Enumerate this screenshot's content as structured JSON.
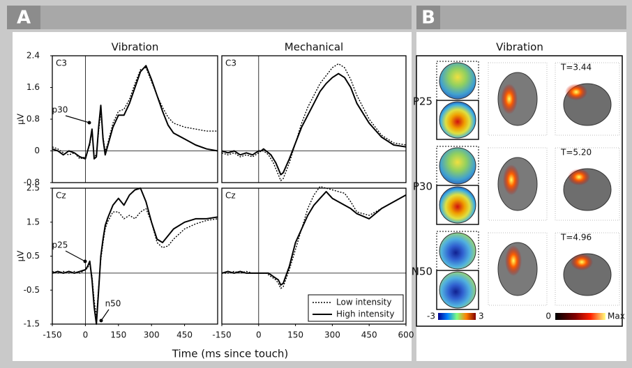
{
  "panel_a": {
    "label": "A",
    "xlabel": "Time (ms since touch)"
  },
  "chart_data": [
    {
      "type": "line",
      "title": "Vibration",
      "channel": "C3",
      "ylabel": "µV",
      "xlim": [
        -150,
        600
      ],
      "ylim": [
        -0.8,
        2.4
      ],
      "yticks": [
        -0.8,
        0,
        0.8,
        1.6,
        2.4
      ],
      "annotations": [
        "p30"
      ],
      "x": [
        -150,
        -125,
        -100,
        -75,
        -50,
        -25,
        0,
        10,
        20,
        30,
        40,
        50,
        60,
        70,
        80,
        90,
        100,
        125,
        150,
        175,
        200,
        225,
        250,
        275,
        300,
        325,
        350,
        375,
        400,
        450,
        500,
        550,
        600
      ],
      "series": [
        {
          "name": "Low intensity",
          "color": "#000000",
          "style": "dotted",
          "values": [
            0.1,
            0.05,
            -0.05,
            -0.1,
            -0.05,
            -0.2,
            -0.15,
            0.0,
            0.15,
            0.5,
            -0.15,
            -0.1,
            0.5,
            1.0,
            0.35,
            0.0,
            0.15,
            0.7,
            1.0,
            1.05,
            1.3,
            1.7,
            2.05,
            2.1,
            1.75,
            1.4,
            1.1,
            0.85,
            0.7,
            0.6,
            0.55,
            0.5,
            0.5
          ]
        },
        {
          "name": "High intensity",
          "color": "#000000",
          "style": "solid",
          "values": [
            0.05,
            0.0,
            -0.1,
            0.0,
            -0.05,
            -0.15,
            -0.2,
            0.0,
            0.2,
            0.55,
            -0.2,
            -0.15,
            0.6,
            1.15,
            0.3,
            -0.1,
            0.1,
            0.6,
            0.9,
            0.9,
            1.2,
            1.6,
            2.0,
            2.15,
            1.8,
            1.4,
            1.0,
            0.65,
            0.45,
            0.3,
            0.15,
            0.05,
            0.0
          ]
        }
      ]
    },
    {
      "type": "line",
      "title": "Mechanical",
      "channel": "C3",
      "xlim": [
        -150,
        600
      ],
      "ylim": [
        -0.8,
        2.4
      ],
      "x": [
        -150,
        -125,
        -100,
        -75,
        -50,
        -25,
        0,
        10,
        20,
        30,
        40,
        50,
        60,
        70,
        80,
        90,
        100,
        125,
        150,
        175,
        200,
        225,
        250,
        275,
        300,
        325,
        350,
        375,
        400,
        450,
        500,
        550,
        600
      ],
      "series": [
        {
          "name": "Low intensity",
          "color": "#000000",
          "style": "dotted",
          "values": [
            -0.05,
            -0.1,
            -0.05,
            -0.15,
            -0.1,
            -0.15,
            -0.05,
            0.0,
            0.0,
            -0.05,
            -0.1,
            -0.2,
            -0.3,
            -0.45,
            -0.6,
            -0.75,
            -0.7,
            -0.3,
            0.2,
            0.7,
            1.1,
            1.4,
            1.7,
            1.9,
            2.1,
            2.2,
            2.1,
            1.8,
            1.4,
            0.8,
            0.4,
            0.2,
            0.15
          ]
        },
        {
          "name": "High intensity",
          "color": "#000000",
          "style": "solid",
          "values": [
            0.0,
            -0.05,
            0.0,
            -0.1,
            -0.05,
            -0.1,
            0.0,
            0.0,
            0.05,
            0.0,
            -0.05,
            -0.1,
            -0.2,
            -0.3,
            -0.45,
            -0.6,
            -0.55,
            -0.2,
            0.2,
            0.6,
            0.9,
            1.2,
            1.5,
            1.7,
            1.85,
            1.95,
            1.85,
            1.6,
            1.2,
            0.7,
            0.35,
            0.15,
            0.1
          ]
        }
      ]
    },
    {
      "type": "line",
      "channel": "Cz",
      "ylabel": "µV",
      "xlim": [
        -150,
        600
      ],
      "ylim": [
        -1.5,
        2.5
      ],
      "yticks": [
        -1.5,
        -0.5,
        0.5,
        1.5,
        2.5
      ],
      "xticks": [
        -150,
        0,
        150,
        300,
        450
      ],
      "annotations": [
        "p25",
        "n50"
      ],
      "x": [
        -150,
        -125,
        -100,
        -75,
        -50,
        -25,
        0,
        10,
        20,
        30,
        40,
        50,
        60,
        70,
        80,
        90,
        100,
        125,
        150,
        175,
        200,
        225,
        250,
        275,
        300,
        325,
        350,
        375,
        400,
        450,
        500,
        550,
        600
      ],
      "series": [
        {
          "name": "Low intensity",
          "color": "#000000",
          "style": "dotted",
          "values": [
            0.05,
            0.0,
            0.05,
            0.0,
            0.05,
            0.0,
            0.1,
            0.15,
            0.3,
            -0.1,
            -0.8,
            -1.3,
            -0.4,
            0.4,
            0.9,
            1.3,
            1.5,
            1.8,
            1.8,
            1.6,
            1.7,
            1.6,
            1.8,
            1.9,
            1.5,
            0.9,
            0.75,
            0.8,
            1.0,
            1.3,
            1.45,
            1.55,
            1.6
          ]
        },
        {
          "name": "High intensity",
          "color": "#000000",
          "style": "solid",
          "values": [
            0.0,
            0.05,
            0.0,
            0.05,
            0.0,
            0.05,
            0.1,
            0.2,
            0.35,
            -0.2,
            -1.0,
            -1.5,
            -0.5,
            0.5,
            1.0,
            1.4,
            1.6,
            2.0,
            2.2,
            2.0,
            2.3,
            2.45,
            2.5,
            2.1,
            1.5,
            1.0,
            0.9,
            1.1,
            1.3,
            1.5,
            1.6,
            1.6,
            1.65
          ]
        }
      ]
    },
    {
      "type": "line",
      "channel": "Cz",
      "legend": "lower right",
      "xlim": [
        -150,
        600
      ],
      "ylim": [
        -1.5,
        2.5
      ],
      "xticks": [
        -150,
        0,
        150,
        300,
        450,
        600
      ],
      "x": [
        -150,
        -125,
        -100,
        -75,
        -50,
        -25,
        0,
        10,
        20,
        30,
        40,
        50,
        60,
        70,
        80,
        90,
        100,
        125,
        150,
        175,
        200,
        225,
        250,
        275,
        300,
        325,
        350,
        375,
        400,
        450,
        500,
        550,
        600
      ],
      "series": [
        {
          "name": "Low intensity",
          "color": "#000000",
          "style": "dotted",
          "values": [
            0.0,
            0.0,
            0.05,
            0.0,
            0.05,
            0.0,
            0.0,
            0.0,
            0.0,
            0.0,
            -0.05,
            -0.1,
            -0.15,
            -0.2,
            -0.3,
            -0.45,
            -0.4,
            0.1,
            0.7,
            1.3,
            1.9,
            2.3,
            2.55,
            2.5,
            2.45,
            2.4,
            2.35,
            2.1,
            1.8,
            1.7,
            1.9,
            2.1,
            2.3
          ]
        },
        {
          "name": "High intensity",
          "color": "#000000",
          "style": "solid",
          "values": [
            0.0,
            0.05,
            0.0,
            0.05,
            0.0,
            0.0,
            0.0,
            0.0,
            0.0,
            0.0,
            0.0,
            -0.05,
            -0.1,
            -0.15,
            -0.2,
            -0.35,
            -0.3,
            0.2,
            0.9,
            1.3,
            1.7,
            2.0,
            2.2,
            2.4,
            2.2,
            2.1,
            2.0,
            1.9,
            1.75,
            1.6,
            1.9,
            2.1,
            2.3
          ]
        }
      ]
    }
  ],
  "panel_b": {
    "label": "B",
    "title": "Vibration",
    "rows": [
      {
        "component": "P25",
        "stat": "T=3.44"
      },
      {
        "component": "P30",
        "stat": "T=5.20"
      },
      {
        "component": "N50",
        "stat": "T=4.96"
      }
    ],
    "topo_scale": [
      "-3",
      "3"
    ],
    "source_scale": [
      "0",
      "Max"
    ]
  }
}
